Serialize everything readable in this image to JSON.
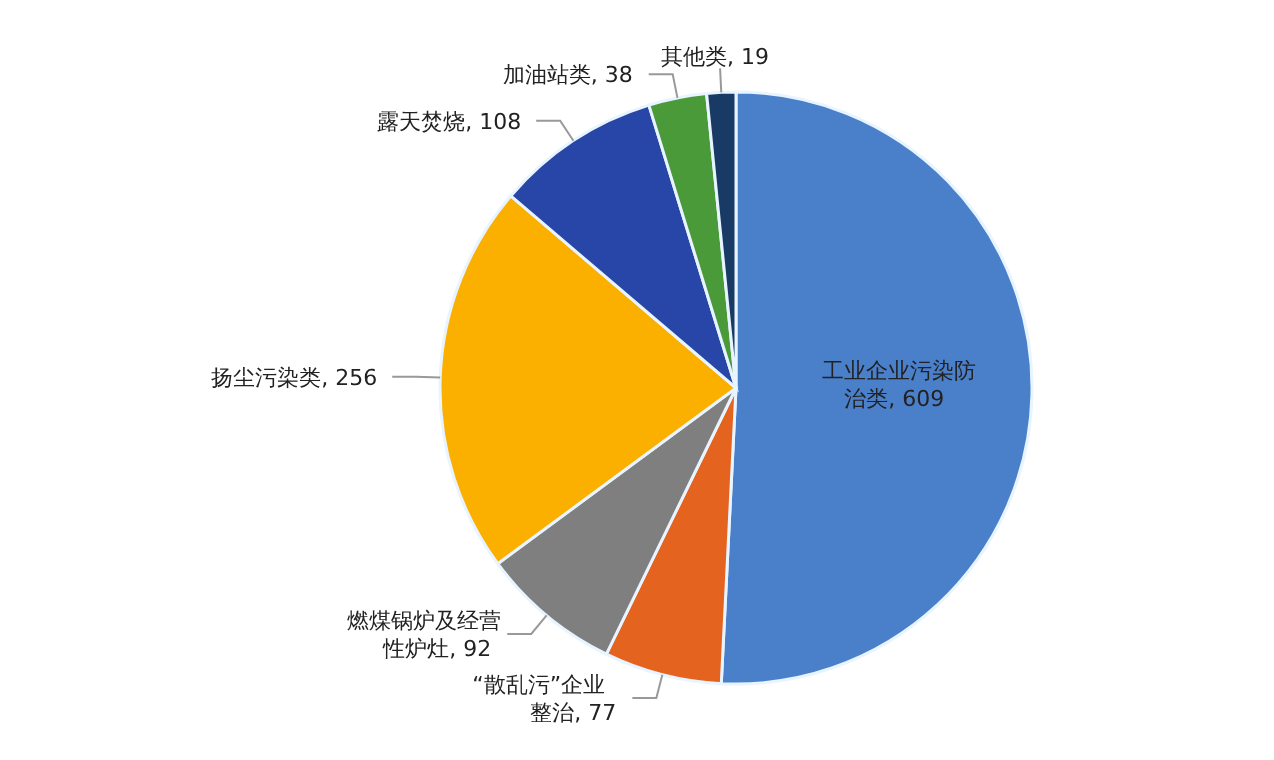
{
  "chart_data": {
    "type": "pie",
    "categories": [
      "工业企业污染防治类",
      "“散乱污”企业整治",
      "燃煤锅炉及经营性炉灶",
      "扬尘污染类",
      "露天焚烧",
      "加油站类",
      "其他类"
    ],
    "values": [
      609,
      77,
      92,
      256,
      108,
      38,
      19
    ],
    "colors": [
      "#4a7fca",
      "#e3631f",
      "#7f7f7f",
      "#fbb000",
      "#2746a8",
      "#4a9a3a",
      "#1a3a66"
    ],
    "value_labels": [
      ", 609",
      ", 77",
      ", 92",
      ", 256",
      ", 108",
      ", 38",
      ", 19"
    ]
  }
}
